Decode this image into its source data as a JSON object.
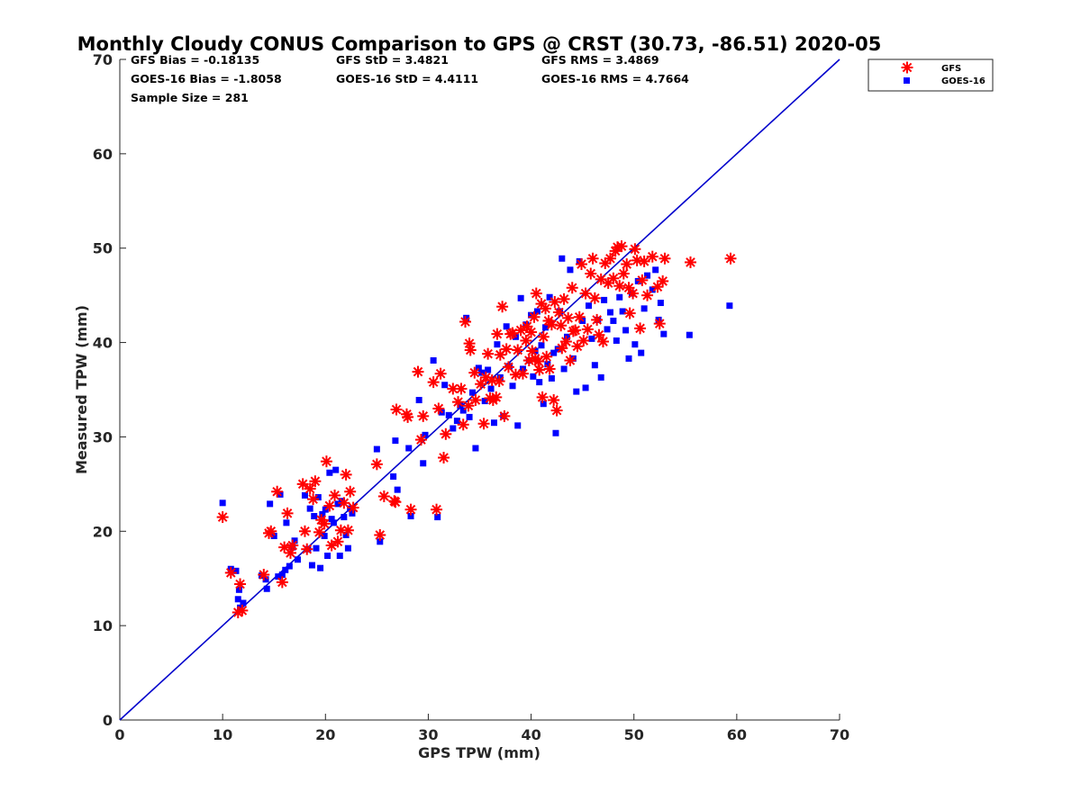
{
  "chart_data": {
    "type": "scatter",
    "title": "Monthly Cloudy CONUS Comparison to GPS @ CRST (30.73, -86.51) 2020-05",
    "xlabel": "GPS TPW (mm)",
    "ylabel": "Measured TPW (mm)",
    "xlim": [
      0,
      70
    ],
    "ylim": [
      0,
      70
    ],
    "xticks": [
      "0",
      "10",
      "20",
      "30",
      "40",
      "50",
      "60",
      "70"
    ],
    "yticks": [
      "0",
      "10",
      "20",
      "30",
      "40",
      "50",
      "60",
      "70"
    ],
    "grid": false,
    "legend_position": "outside-top-right",
    "reference_line": {
      "x": [
        0,
        70
      ],
      "y": [
        0,
        70
      ],
      "color": "#0000cc"
    },
    "stats": [
      "GFS Bias = -0.18135",
      "GFS StD = 3.4821",
      "GFS RMS = 3.4869",
      "GOES-16 Bias = -1.8058",
      "GOES-16 StD = 4.4111",
      "GOES-16 RMS = 4.7664",
      "Sample Size = 281"
    ],
    "series": [
      {
        "name": "GFS",
        "marker": "asterisk",
        "color": "#ff0000",
        "points": [
          [
            10,
            21.5
          ],
          [
            10.8,
            15.6
          ],
          [
            11.5,
            11.4
          ],
          [
            11.7,
            14.4
          ],
          [
            11.9,
            11.6
          ],
          [
            14,
            15.4
          ],
          [
            14.5,
            19.8
          ],
          [
            14.7,
            20
          ],
          [
            15.3,
            24.2
          ],
          [
            15.8,
            14.6
          ],
          [
            16,
            18.3
          ],
          [
            16.3,
            21.9
          ],
          [
            16.6,
            17.7
          ],
          [
            16.8,
            18.5
          ],
          [
            17.8,
            25
          ],
          [
            18,
            20
          ],
          [
            18.2,
            18.1
          ],
          [
            18.5,
            24.5
          ],
          [
            18.8,
            23.4
          ],
          [
            19,
            25.3
          ],
          [
            19.4,
            19.9
          ],
          [
            19.6,
            21.2
          ],
          [
            19.9,
            20.8
          ],
          [
            20.1,
            27.4
          ],
          [
            20.4,
            22.7
          ],
          [
            20.6,
            18.5
          ],
          [
            20.9,
            23.8
          ],
          [
            21.2,
            18.9
          ],
          [
            21.5,
            20.1
          ],
          [
            21.8,
            23
          ],
          [
            22,
            26
          ],
          [
            22.2,
            20.1
          ],
          [
            22.4,
            24.2
          ],
          [
            22.7,
            22.5
          ],
          [
            25,
            27.1
          ],
          [
            25.3,
            19.6
          ],
          [
            25.7,
            23.7
          ],
          [
            26.7,
            23.2
          ],
          [
            26.8,
            23.1
          ],
          [
            26.9,
            32.9
          ],
          [
            27.9,
            32.4
          ],
          [
            28,
            32.1
          ],
          [
            28.3,
            22.3
          ],
          [
            29,
            36.9
          ],
          [
            29.3,
            29.7
          ],
          [
            29.5,
            32.2
          ],
          [
            30.5,
            35.8
          ],
          [
            30.8,
            22.3
          ],
          [
            31,
            33
          ],
          [
            31.2,
            36.7
          ],
          [
            31.5,
            27.8
          ],
          [
            31.7,
            30.3
          ],
          [
            32.4,
            35.1
          ],
          [
            32.9,
            33.7
          ],
          [
            33.2,
            35.1
          ],
          [
            33.4,
            31.3
          ],
          [
            33.6,
            42.2
          ],
          [
            33.9,
            33.3
          ],
          [
            34,
            39.9
          ],
          [
            34.1,
            39.2
          ],
          [
            34.5,
            36.8
          ],
          [
            34.6,
            33.9
          ],
          [
            35.1,
            35.6
          ],
          [
            35.4,
            31.4
          ],
          [
            35.6,
            36.3
          ],
          [
            35.8,
            38.8
          ],
          [
            36,
            34.1
          ],
          [
            36.2,
            36
          ],
          [
            36.3,
            33.9
          ],
          [
            36.6,
            34.2
          ],
          [
            36.7,
            40.9
          ],
          [
            36.9,
            35.9
          ],
          [
            37,
            38.7
          ],
          [
            37.2,
            43.8
          ],
          [
            37.4,
            32.2
          ],
          [
            37.6,
            39.3
          ],
          [
            37.8,
            37.4
          ],
          [
            38,
            40.9
          ],
          [
            38.2,
            41
          ],
          [
            38.5,
            36.6
          ],
          [
            38.7,
            39.2
          ],
          [
            39,
            41.3
          ],
          [
            39.2,
            36.7
          ],
          [
            39.5,
            40.2
          ],
          [
            39.6,
            41.7
          ],
          [
            39.8,
            38.1
          ],
          [
            40,
            41.1
          ],
          [
            40.1,
            39.1
          ],
          [
            40.3,
            42.7
          ],
          [
            40.4,
            38.3
          ],
          [
            40.5,
            45.2
          ],
          [
            40.7,
            38
          ],
          [
            40.8,
            37.1
          ],
          [
            41,
            44.1
          ],
          [
            41.1,
            34.2
          ],
          [
            41.2,
            40.6
          ],
          [
            41.4,
            43.6
          ],
          [
            41.5,
            38.5
          ],
          [
            41.7,
            42.3
          ],
          [
            41.8,
            37.2
          ],
          [
            42,
            41.9
          ],
          [
            42.2,
            33.9
          ],
          [
            42.3,
            44.3
          ],
          [
            42.5,
            32.8
          ],
          [
            42.7,
            43.2
          ],
          [
            42.9,
            41.8
          ],
          [
            43,
            39.4
          ],
          [
            43.2,
            44.6
          ],
          [
            43.4,
            40.1
          ],
          [
            43.6,
            42.6
          ],
          [
            43.8,
            38.1
          ],
          [
            44,
            45.8
          ],
          [
            44.1,
            41.2
          ],
          [
            44.3,
            41.3
          ],
          [
            44.5,
            39.6
          ],
          [
            44.7,
            42.7
          ],
          [
            44.9,
            48.3
          ],
          [
            45.1,
            40.2
          ],
          [
            45.3,
            45.2
          ],
          [
            45.5,
            41.4
          ],
          [
            45.8,
            47.3
          ],
          [
            46,
            48.9
          ],
          [
            46.2,
            44.7
          ],
          [
            46.4,
            42.4
          ],
          [
            46.6,
            40.8
          ],
          [
            46.8,
            46.7
          ],
          [
            47,
            40.1
          ],
          [
            47.2,
            48.4
          ],
          [
            47.5,
            46.3
          ],
          [
            47.7,
            48.9
          ],
          [
            48,
            46.8
          ],
          [
            48.2,
            49.7
          ],
          [
            48.4,
            50.1
          ],
          [
            48.6,
            46
          ],
          [
            48.8,
            50.2
          ],
          [
            49,
            47.3
          ],
          [
            49.3,
            48.3
          ],
          [
            49.5,
            45.8
          ],
          [
            49.6,
            43.1
          ],
          [
            49.9,
            45.2
          ],
          [
            50.1,
            49.9
          ],
          [
            50.3,
            48.7
          ],
          [
            50.6,
            41.5
          ],
          [
            50.8,
            46.6
          ],
          [
            51,
            48.6
          ],
          [
            51.3,
            45
          ],
          [
            51.8,
            49.1
          ],
          [
            52.3,
            45.9
          ],
          [
            52.5,
            42
          ],
          [
            52.8,
            46.5
          ],
          [
            53,
            48.9
          ],
          [
            55.5,
            48.5
          ],
          [
            59.4,
            48.9
          ]
        ]
      },
      {
        "name": "GOES-16",
        "marker": "square",
        "color": "#0000ff",
        "points": [
          [
            10,
            23
          ],
          [
            10.8,
            16
          ],
          [
            11.3,
            15.8
          ],
          [
            11.5,
            12.8
          ],
          [
            11.6,
            13.8
          ],
          [
            11.7,
            11.9
          ],
          [
            12,
            12.4
          ],
          [
            13.8,
            15.3
          ],
          [
            14.2,
            14.9
          ],
          [
            14.3,
            13.9
          ],
          [
            14.6,
            22.9
          ],
          [
            15,
            19.5
          ],
          [
            15.4,
            15.2
          ],
          [
            15.6,
            23.9
          ],
          [
            15.8,
            15.4
          ],
          [
            16.1,
            15.9
          ],
          [
            16.2,
            20.9
          ],
          [
            16.5,
            16.3
          ],
          [
            16.8,
            18.3
          ],
          [
            17,
            19
          ],
          [
            17.3,
            17
          ],
          [
            18,
            23.8
          ],
          [
            18.3,
            18.1
          ],
          [
            18.5,
            22.4
          ],
          [
            18.7,
            16.4
          ],
          [
            18.9,
            21.6
          ],
          [
            19.1,
            18.2
          ],
          [
            19.3,
            23.6
          ],
          [
            19.5,
            16.1
          ],
          [
            19.7,
            21.8
          ],
          [
            19.9,
            19.5
          ],
          [
            20,
            22.3
          ],
          [
            20.2,
            17.4
          ],
          [
            20.4,
            26.2
          ],
          [
            20.6,
            21.3
          ],
          [
            20.8,
            20.9
          ],
          [
            21,
            26.5
          ],
          [
            21.2,
            22.9
          ],
          [
            21.4,
            17.4
          ],
          [
            21.6,
            23.2
          ],
          [
            21.8,
            21.5
          ],
          [
            22,
            19.6
          ],
          [
            22.2,
            18.2
          ],
          [
            22.4,
            22.4
          ],
          [
            22.6,
            21.9
          ],
          [
            25,
            28.7
          ],
          [
            25.3,
            18.9
          ],
          [
            26.6,
            25.8
          ],
          [
            26.8,
            29.6
          ],
          [
            27,
            24.4
          ],
          [
            28.1,
            28.8
          ],
          [
            28.3,
            21.6
          ],
          [
            29.1,
            33.9
          ],
          [
            29.5,
            27.2
          ],
          [
            29.7,
            30.2
          ],
          [
            30.5,
            38.1
          ],
          [
            30.9,
            21.5
          ],
          [
            31.3,
            32.6
          ],
          [
            31.6,
            35.5
          ],
          [
            32,
            32.3
          ],
          [
            32.4,
            30.9
          ],
          [
            32.8,
            31.7
          ],
          [
            33.1,
            33.3
          ],
          [
            33.4,
            32.8
          ],
          [
            33.7,
            42.6
          ],
          [
            34,
            32.1
          ],
          [
            34.3,
            34.7
          ],
          [
            34.6,
            28.8
          ],
          [
            34.9,
            37.3
          ],
          [
            35.2,
            36.8
          ],
          [
            35.5,
            33.8
          ],
          [
            35.8,
            37.1
          ],
          [
            36.1,
            35.1
          ],
          [
            36.4,
            31.5
          ],
          [
            36.7,
            39.8
          ],
          [
            37,
            36.3
          ],
          [
            37.3,
            32.2
          ],
          [
            37.6,
            41.7
          ],
          [
            37.9,
            37.5
          ],
          [
            38.2,
            35.4
          ],
          [
            38.5,
            40.6
          ],
          [
            38.7,
            31.2
          ],
          [
            39,
            44.7
          ],
          [
            39.2,
            37.2
          ],
          [
            39.5,
            41.9
          ],
          [
            39.8,
            38.1
          ],
          [
            40,
            42.9
          ],
          [
            40.2,
            36.4
          ],
          [
            40.4,
            39.1
          ],
          [
            40.6,
            43.3
          ],
          [
            40.8,
            35.8
          ],
          [
            41,
            39.7
          ],
          [
            41.2,
            33.5
          ],
          [
            41.4,
            41.6
          ],
          [
            41.6,
            37.7
          ],
          [
            41.8,
            44.8
          ],
          [
            42,
            36.2
          ],
          [
            42.2,
            38.9
          ],
          [
            42.4,
            30.4
          ],
          [
            42.6,
            39.3
          ],
          [
            42.8,
            43.3
          ],
          [
            43,
            48.9
          ],
          [
            43.2,
            37.2
          ],
          [
            43.5,
            40.6
          ],
          [
            43.8,
            47.7
          ],
          [
            44.1,
            38.3
          ],
          [
            44.4,
            34.8
          ],
          [
            44.7,
            48.6
          ],
          [
            45,
            42.3
          ],
          [
            45.3,
            35.2
          ],
          [
            45.6,
            43.9
          ],
          [
            45.9,
            40.4
          ],
          [
            46.2,
            37.6
          ],
          [
            46.5,
            42.4
          ],
          [
            46.8,
            36.3
          ],
          [
            47.1,
            44.5
          ],
          [
            47.4,
            41.4
          ],
          [
            47.7,
            43.2
          ],
          [
            48,
            42.3
          ],
          [
            48.3,
            40.2
          ],
          [
            48.6,
            44.8
          ],
          [
            48.9,
            43.3
          ],
          [
            49.2,
            41.3
          ],
          [
            49.5,
            38.3
          ],
          [
            49.8,
            45.2
          ],
          [
            50.1,
            39.8
          ],
          [
            50.4,
            46.5
          ],
          [
            50.7,
            38.9
          ],
          [
            51,
            43.6
          ],
          [
            51.3,
            47.1
          ],
          [
            51.8,
            45.6
          ],
          [
            52.1,
            47.7
          ],
          [
            52.4,
            42.4
          ],
          [
            52.6,
            44.2
          ],
          [
            52.9,
            40.9
          ],
          [
            55.4,
            40.8
          ],
          [
            59.3,
            43.9
          ]
        ]
      }
    ]
  }
}
